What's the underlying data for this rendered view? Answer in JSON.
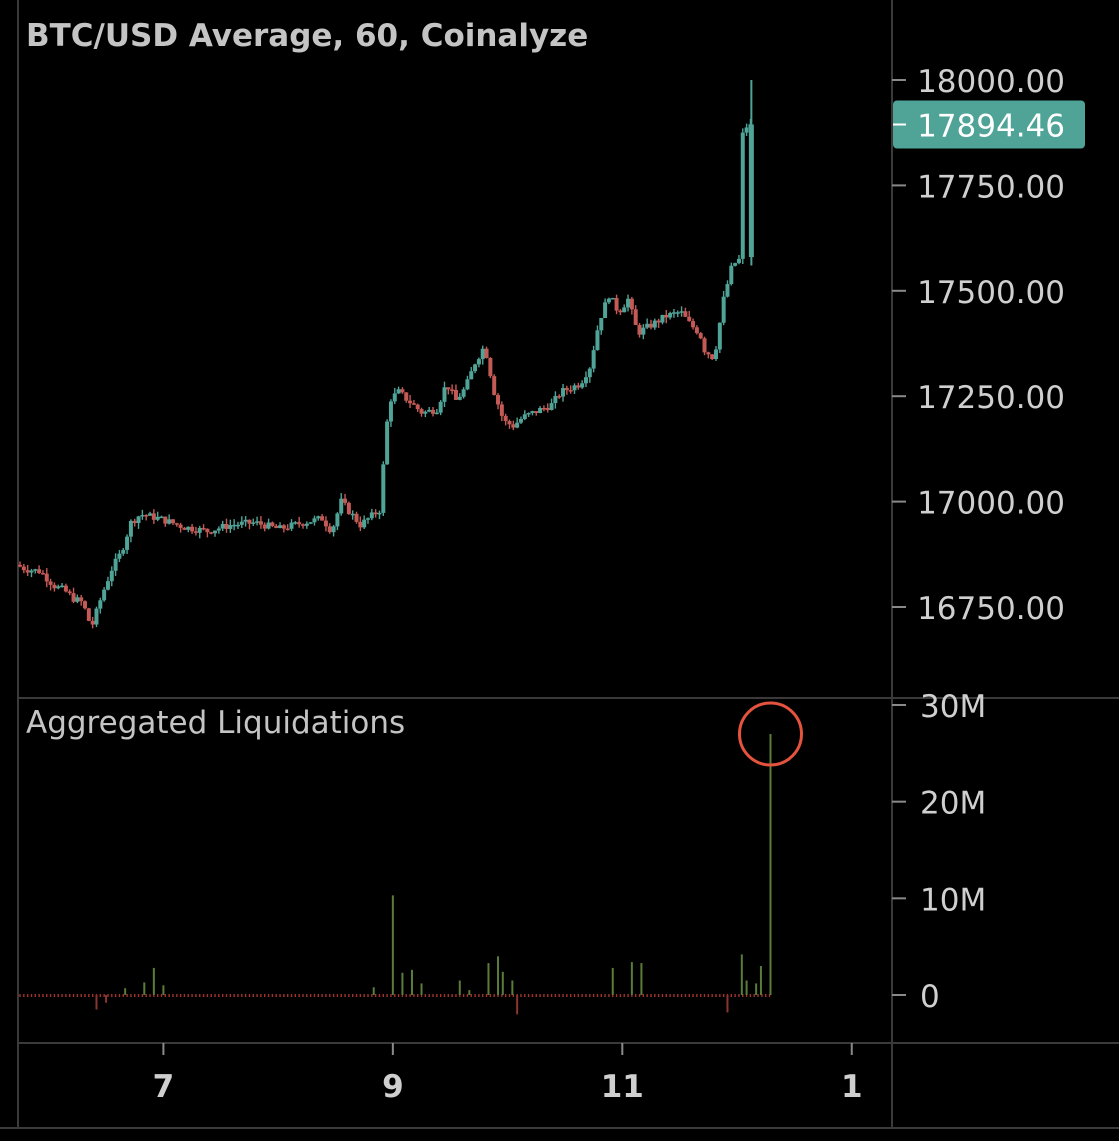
{
  "chart_data": [
    {
      "type": "candlestick",
      "title": "BTC/USD Average, 60, Coinalyze",
      "last_price_label": "17894.46",
      "colors": {
        "up": "#4fa397",
        "down": "#c45a55",
        "last_price_bg": "#4fa397"
      },
      "y_ticks": [
        "18000.00",
        "17750.00",
        "17500.00",
        "17250.00",
        "17000.00",
        "16750.00"
      ],
      "ylim": [
        16570,
        18150
      ],
      "x_ticks": [
        "7",
        "9",
        "11",
        "1"
      ],
      "xlim": [
        0,
        182
      ],
      "anchors": [
        [
          0,
          16850
        ],
        [
          2,
          16840
        ],
        [
          5,
          16835
        ],
        [
          8,
          16800
        ],
        [
          10,
          16790
        ],
        [
          12,
          16770
        ],
        [
          14,
          16760
        ],
        [
          15,
          16720
        ],
        [
          16,
          16710
        ],
        [
          18,
          16780
        ],
        [
          20,
          16840
        ],
        [
          22,
          16880
        ],
        [
          24,
          16950
        ],
        [
          26,
          16970
        ],
        [
          30,
          16960
        ],
        [
          35,
          16940
        ],
        [
          40,
          16930
        ],
        [
          45,
          16945
        ],
        [
          50,
          16950
        ],
        [
          55,
          16935
        ],
        [
          60,
          16950
        ],
        [
          64,
          16960
        ],
        [
          66,
          16930
        ],
        [
          68,
          17000
        ],
        [
          72,
          16945
        ],
        [
          76,
          16980
        ],
        [
          78,
          17240
        ],
        [
          80,
          17260
        ],
        [
          85,
          17210
        ],
        [
          88,
          17220
        ],
        [
          90,
          17280
        ],
        [
          92,
          17240
        ],
        [
          94,
          17270
        ],
        [
          96,
          17330
        ],
        [
          98,
          17370
        ],
        [
          100,
          17260
        ],
        [
          102,
          17190
        ],
        [
          104,
          17180
        ],
        [
          106,
          17200
        ],
        [
          108,
          17210
        ],
        [
          112,
          17230
        ],
        [
          114,
          17260
        ],
        [
          118,
          17280
        ],
        [
          120,
          17320
        ],
        [
          122,
          17430
        ],
        [
          124,
          17490
        ],
        [
          126,
          17450
        ],
        [
          128,
          17480
        ],
        [
          130,
          17400
        ],
        [
          133,
          17420
        ],
        [
          136,
          17440
        ],
        [
          139,
          17450
        ],
        [
          141,
          17420
        ],
        [
          143,
          17400
        ],
        [
          144,
          17360
        ],
        [
          146,
          17340
        ],
        [
          148,
          17480
        ],
        [
          150,
          17570
        ],
        [
          151,
          17560
        ],
        [
          151.6,
          17600
        ],
        [
          152,
          17870
        ],
        [
          153,
          17895
        ]
      ]
    },
    {
      "type": "bar",
      "title": "Aggregated Liquidations",
      "y_ticks": [
        "30M",
        "20M",
        "10M",
        "0"
      ],
      "ylim": [
        -3000000,
        31000000
      ],
      "colors": {
        "long": "#5a7d3a",
        "short": "#8a3530",
        "baseline": "#a0332e",
        "highlight_circle": "#e3533d"
      },
      "notable_bars": [
        {
          "x": 16,
          "value": -1500000
        },
        {
          "x": 18,
          "value": -800000
        },
        {
          "x": 22,
          "value": 700000
        },
        {
          "x": 26,
          "value": 1300000
        },
        {
          "x": 28,
          "value": 2800000
        },
        {
          "x": 30,
          "value": 1000000
        },
        {
          "x": 74,
          "value": 800000
        },
        {
          "x": 78,
          "value": 10300000
        },
        {
          "x": 80,
          "value": 2300000
        },
        {
          "x": 82,
          "value": 2600000
        },
        {
          "x": 84,
          "value": 1200000
        },
        {
          "x": 92,
          "value": 1500000
        },
        {
          "x": 94,
          "value": 500000
        },
        {
          "x": 98,
          "value": 3300000
        },
        {
          "x": 100,
          "value": 4000000
        },
        {
          "x": 101,
          "value": 2400000
        },
        {
          "x": 103,
          "value": 1500000
        },
        {
          "x": 104,
          "value": -2000000
        },
        {
          "x": 124,
          "value": 2800000
        },
        {
          "x": 128,
          "value": 3400000
        },
        {
          "x": 130,
          "value": 3300000
        },
        {
          "x": 148,
          "value": -1800000
        },
        {
          "x": 151,
          "value": 4200000
        },
        {
          "x": 152,
          "value": 1500000
        },
        {
          "x": 154,
          "value": 1200000
        },
        {
          "x": 155,
          "value": 3000000
        },
        {
          "x": 157,
          "value": 27000000
        }
      ],
      "highlighted_x": 157
    }
  ]
}
